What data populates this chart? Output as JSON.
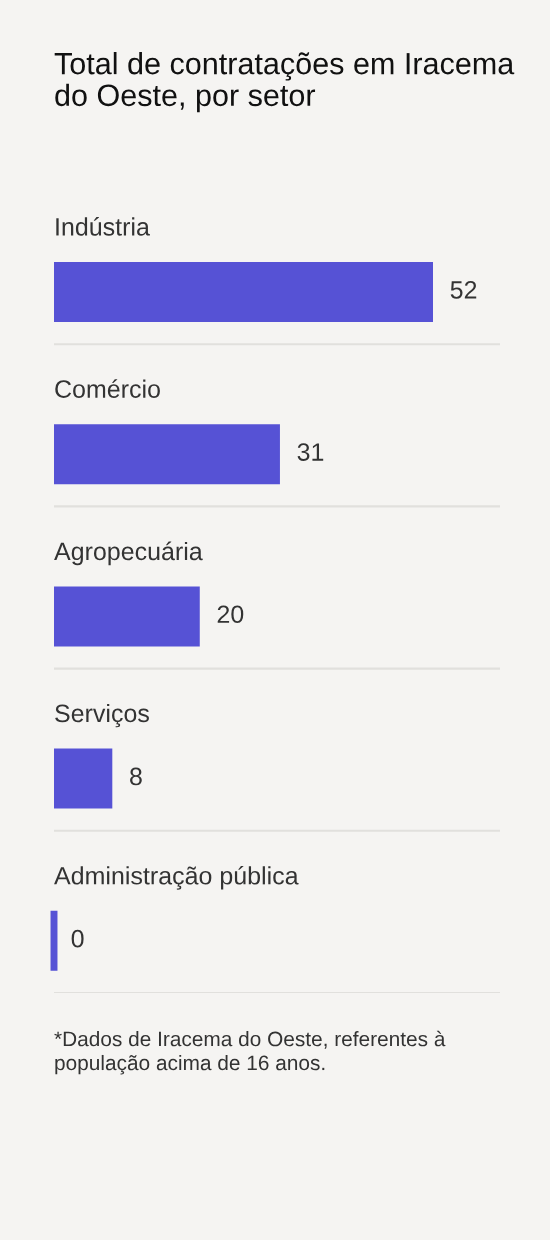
{
  "chart_data": {
    "type": "bar",
    "orientation": "horizontal",
    "title": "Total de contratações em Iracema do Oeste, por setor",
    "categories": [
      "Indústria",
      "Comércio",
      "Agropecuária",
      "Serviços",
      "Administração pública"
    ],
    "values": [
      52,
      31,
      20,
      8,
      0
    ],
    "color": "#5652d5",
    "data_labels": true,
    "grid": "y",
    "annotations": [
      "*Dados de Iracema do Oeste, referentes à população acima de 16 anos."
    ]
  }
}
